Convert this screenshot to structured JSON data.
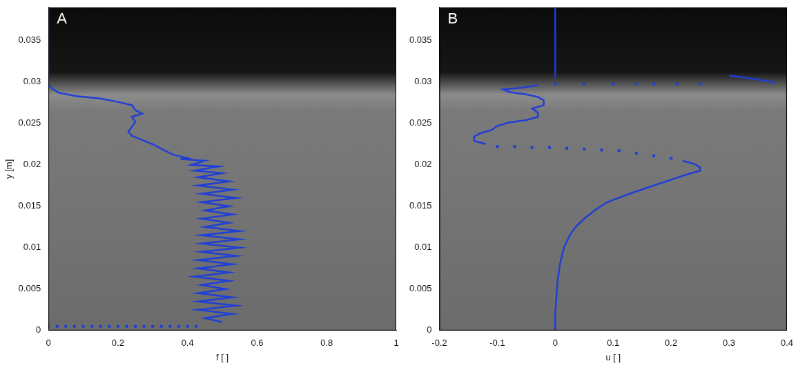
{
  "chart_data": [
    {
      "type": "scatter",
      "panel": "A",
      "x_label": "f [ ]",
      "y_label": "y [m]",
      "color": "#1f3fd6",
      "grid": false,
      "xlim": [
        0,
        1
      ],
      "xticks": [
        0,
        0.2,
        0.4,
        0.6,
        0.8,
        1
      ],
      "ylim": [
        0,
        0.039
      ],
      "yticks": [
        0,
        0.005,
        0.01,
        0.015,
        0.02,
        0.025,
        0.03,
        0.035
      ],
      "series": [
        {
          "line_style": "solid",
          "marker": "none",
          "x": [
            0,
            0,
            0,
            0,
            0,
            0.01,
            0.03,
            0.08,
            0.15,
            0.2,
            0.24,
            0.25,
            0.27,
            0.24,
            0.25,
            0.24,
            0.23,
            0.24,
            0.27,
            0.3,
            0.33,
            0.36,
            0.4,
            0.38,
            0.45,
            0.41,
            0.49,
            0.42,
            0.5,
            0.43,
            0.52,
            0.43,
            0.53,
            0.44,
            0.54,
            0.44,
            0.52,
            0.45,
            0.53,
            0.44,
            0.52,
            0.45,
            0.55,
            0.44,
            0.55,
            0.44,
            0.55,
            0.44,
            0.54,
            0.43,
            0.53,
            0.43,
            0.52,
            0.42,
            0.52,
            0.44,
            0.51,
            0.43,
            0.53,
            0.43,
            0.54,
            0.43,
            0.53,
            0.45,
            0.5
          ],
          "y": [
            0.039,
            0.036,
            0.033,
            0.031,
            0.0298,
            0.0292,
            0.0287,
            0.0283,
            0.028,
            0.0276,
            0.0272,
            0.0266,
            0.0262,
            0.0258,
            0.0252,
            0.0246,
            0.024,
            0.0235,
            0.023,
            0.0225,
            0.0218,
            0.0212,
            0.0208,
            0.0207,
            0.0205,
            0.02,
            0.0198,
            0.0193,
            0.019,
            0.0185,
            0.018,
            0.0175,
            0.017,
            0.0165,
            0.016,
            0.0155,
            0.015,
            0.0145,
            0.014,
            0.0135,
            0.013,
            0.0125,
            0.012,
            0.0115,
            0.011,
            0.0105,
            0.01,
            0.0095,
            0.009,
            0.0085,
            0.008,
            0.0075,
            0.007,
            0.0065,
            0.006,
            0.0055,
            0.005,
            0.0045,
            0.004,
            0.0035,
            0.003,
            0.0025,
            0.002,
            0.0015,
            0.001
          ]
        },
        {
          "line_style": "none",
          "marker": "circle",
          "x": [
            0,
            0.025,
            0.05,
            0.075,
            0.1,
            0.125,
            0.15,
            0.175,
            0.2,
            0.225,
            0.25,
            0.275,
            0.3,
            0.325,
            0.35,
            0.375,
            0.4,
            0.425
          ],
          "y": [
            0.0005,
            0.0005,
            0.0005,
            0.0005,
            0.0005,
            0.0005,
            0.0005,
            0.0005,
            0.0005,
            0.0005,
            0.0005,
            0.0005,
            0.0005,
            0.0005,
            0.0005,
            0.0005,
            0.0005,
            0.0005
          ]
        }
      ]
    },
    {
      "type": "scatter",
      "panel": "B",
      "x_label": "u [ ]",
      "color": "#1f3fd6",
      "grid": false,
      "xlim": [
        -0.2,
        0.4
      ],
      "xticks": [
        -0.2,
        -0.1,
        0,
        0.1,
        0.2,
        0.3,
        0.4
      ],
      "ylim": [
        0,
        0.039
      ],
      "yticks": [
        0,
        0.005,
        0.01,
        0.015,
        0.02,
        0.025,
        0.03,
        0.035
      ],
      "series": [
        {
          "line_style": "solid",
          "marker": "none",
          "x": [
            0,
            0
          ],
          "y": [
            0.039,
            0.0305
          ]
        },
        {
          "line_style": "none",
          "marker": "circle",
          "x": [
            0,
            0.05,
            0.1,
            0.14,
            0.17,
            0.21,
            0.25
          ],
          "y": [
            0.0298,
            0.0298,
            0.0298,
            0.0298,
            0.0298,
            0.0298,
            0.0298
          ]
        },
        {
          "line_style": "solid",
          "marker": "none",
          "x": [
            0.3,
            0.33,
            0.36,
            0.38
          ],
          "y": [
            0.0308,
            0.0305,
            0.0302,
            0.0299
          ]
        },
        {
          "line_style": "solid",
          "marker": "none",
          "x": [
            -0.03,
            -0.06,
            -0.09,
            -0.08,
            -0.05,
            -0.03,
            -0.02,
            -0.02,
            -0.04,
            -0.03,
            -0.03,
            -0.05,
            -0.08,
            -0.1,
            -0.11,
            -0.13,
            -0.14,
            -0.14,
            -0.12
          ],
          "y": [
            0.0296,
            0.0293,
            0.0291,
            0.0288,
            0.0285,
            0.0282,
            0.0278,
            0.0272,
            0.0268,
            0.0263,
            0.0258,
            0.0254,
            0.0251,
            0.0247,
            0.0242,
            0.0238,
            0.0234,
            0.0229,
            0.0225
          ]
        },
        {
          "line_style": "none",
          "marker": "circle",
          "x": [
            -0.1,
            -0.07,
            -0.04,
            -0.01,
            0.02,
            0.05,
            0.08,
            0.11,
            0.14,
            0.17,
            0.2
          ],
          "y": [
            0.0222,
            0.0222,
            0.0221,
            0.0221,
            0.022,
            0.0219,
            0.0218,
            0.0217,
            0.0214,
            0.0211,
            0.0208
          ]
        },
        {
          "line_style": "solid",
          "marker": "none",
          "x": [
            0.22,
            0.24,
            0.25,
            0.25,
            0.23,
            0.2,
            0.17,
            0.14,
            0.12,
            0.09,
            0.07,
            0.05,
            0.035,
            0.025,
            0.015,
            0.008,
            0.004,
            0.002,
            0,
            0
          ],
          "y": [
            0.0205,
            0.0201,
            0.0197,
            0.0193,
            0.0189,
            0.0182,
            0.0175,
            0.0168,
            0.0163,
            0.0155,
            0.0146,
            0.0135,
            0.0125,
            0.0115,
            0.01,
            0.008,
            0.006,
            0.004,
            0.002,
            0
          ]
        }
      ]
    }
  ]
}
